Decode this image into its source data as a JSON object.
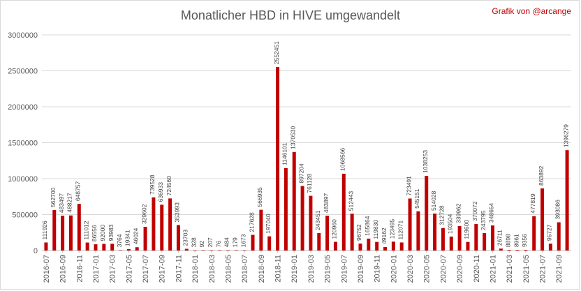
{
  "chart_data": {
    "type": "bar",
    "title": "Monatlicher HBD in HIVE umgewandelt",
    "credit": "Grafik von @arcange",
    "xlabel": "",
    "ylabel": "",
    "ylim": [
      0,
      3000000
    ],
    "yticks": [
      0,
      500000,
      1000000,
      1500000,
      2000000,
      2500000,
      3000000
    ],
    "ytick_labels": [
      "0",
      "500000",
      "1000000",
      "1500000",
      "2000000",
      "2500000",
      "3000000"
    ],
    "grid": true,
    "legend": "none",
    "bar_color": "#c00000",
    "categories": [
      "2016-07",
      "2016-08",
      "2016-09",
      "2016-10",
      "2016-11",
      "2016-12",
      "2017-01",
      "2017-02",
      "2017-03",
      "2017-04",
      "2017-05",
      "2017-06",
      "2017-07",
      "2017-08",
      "2017-09",
      "2017-10",
      "2017-11",
      "2017-12",
      "2018-01",
      "2018-02",
      "2018-03",
      "2018-04",
      "2018-05",
      "2018-06",
      "2018-07",
      "2018-08",
      "2018-09",
      "2018-10",
      "2018-11",
      "2018-12",
      "2019-01",
      "2019-02",
      "2019-03",
      "2019-04",
      "2019-05",
      "2019-06",
      "2019-07",
      "2019-08",
      "2019-09",
      "2019-10",
      "2019-11",
      "2019-12",
      "2020-01",
      "2020-02",
      "2020-03",
      "2020-04",
      "2020-05",
      "2020-06",
      "2020-07",
      "2020-08",
      "2020-09",
      "2020-10",
      "2020-11",
      "2020-12",
      "2021-01",
      "2021-02",
      "2021-03",
      "2021-04",
      "2021-05",
      "2021-06",
      "2021-07",
      "2021-08",
      "2021-09",
      "2021-10"
    ],
    "tick_labels": [
      "2016-07",
      "2016-09",
      "2016-11",
      "2017-01",
      "2017-03",
      "2017-05",
      "2017-07",
      "2017-09",
      "2017-11",
      "2018-01",
      "2018-03",
      "2018-05",
      "2018-07",
      "2018-09",
      "2018-11",
      "2019-01",
      "2019-03",
      "2019-05",
      "2019-07",
      "2019-09",
      "2019-11",
      "2020-01",
      "2020-03",
      "2020-05",
      "2020-07",
      "2020-09",
      "2020-11",
      "2021-01",
      "2021-03",
      "2021-05",
      "2021-07",
      "2021-09"
    ],
    "values": [
      111926,
      562700,
      483497,
      488217,
      648757,
      111012,
      86556,
      92000,
      93983,
      3764,
      19341,
      46024,
      329602,
      739528,
      636933,
      724560,
      353993,
      23703,
      328,
      92,
      207,
      76,
      484,
      179,
      1673,
      217628,
      566935,
      197040,
      2552451,
      1146101,
      1370530,
      897204,
      761128,
      243451,
      483897,
      120960,
      1068566,
      512443,
      96752,
      165864,
      119830,
      49162,
      123495,
      112071,
      723491,
      545151,
      1038253,
      514028,
      312728,
      193504,
      339962,
      119600,
      370072,
      243795,
      348654,
      26711,
      8898,
      8961,
      9356,
      477819,
      863892,
      95727,
      393086,
      1396279
    ],
    "data_labels": [
      "111926",
      "562700",
      "483497",
      "488217",
      "648757",
      "111012",
      "86556",
      "92000",
      "93983",
      "3764",
      "19341",
      "46024",
      "329602",
      "739528",
      "636933",
      "724560",
      "353993",
      "23703",
      "328",
      "92",
      "207",
      "76",
      "484",
      "179",
      "1673",
      "217628",
      "566935",
      "197040",
      "2552451",
      "1146101",
      "1370530",
      "897204",
      "761128",
      "243451",
      "483897",
      "120960",
      "1068566",
      "512443",
      "96752",
      "165864",
      "119830",
      "49162",
      "123495",
      "112071",
      "723491",
      "545151",
      "1038253",
      "514028",
      "312728",
      "193504",
      "339962",
      "119600",
      "370072",
      "243795",
      "348654",
      "26711",
      "8898",
      "8961",
      "9356",
      "477819",
      "863892",
      "95727",
      "393086",
      "1396279"
    ]
  }
}
